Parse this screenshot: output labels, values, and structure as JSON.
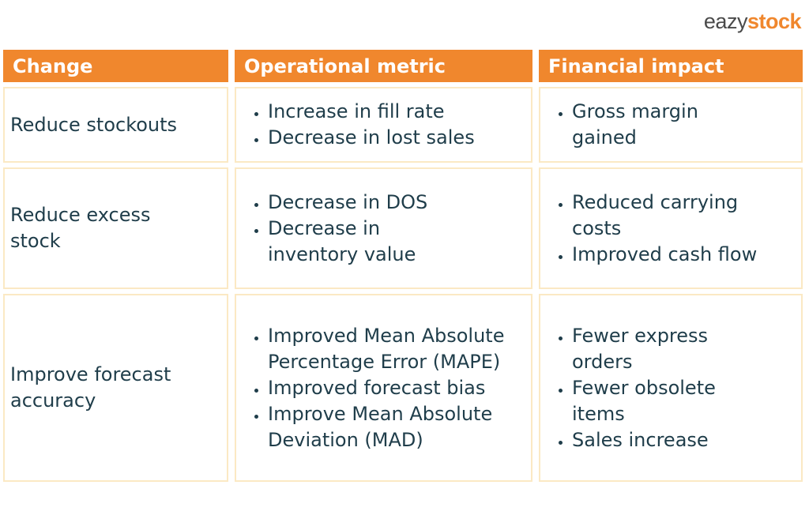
{
  "logo": {
    "part1": "eazy",
    "part2": "stock"
  },
  "headers": [
    "Change",
    "Operational metric",
    "Financial impact"
  ],
  "rows": [
    {
      "change": "Reduce stockouts",
      "operational": [
        "Increase in fill rate",
        "Decrease in lost sales"
      ],
      "financial": [
        "Gross margin gained"
      ]
    },
    {
      "change": "Reduce excess stock",
      "operational": [
        "Decrease in DOS",
        "Decrease in inventory value"
      ],
      "financial": [
        "Reduced carrying costs",
        "Improved cash flow"
      ]
    },
    {
      "change": "Improve forecast accuracy",
      "operational": [
        "Improved Mean Absolute Percentage Error (MAPE)",
        "Improved forecast bias",
        "Improve Mean Absolute Deviation (MAD)"
      ],
      "financial": [
        "Fewer express orders",
        "Fewer obsolete items",
        "Sales increase"
      ]
    }
  ],
  "colors": {
    "header_bg": "#f0872d",
    "header_text": "#ffffff",
    "cell_border": "#fbe9c4",
    "body_text": "#1f3d4a",
    "logo_gray": "#4a4a4a",
    "logo_orange": "#f0872d"
  }
}
